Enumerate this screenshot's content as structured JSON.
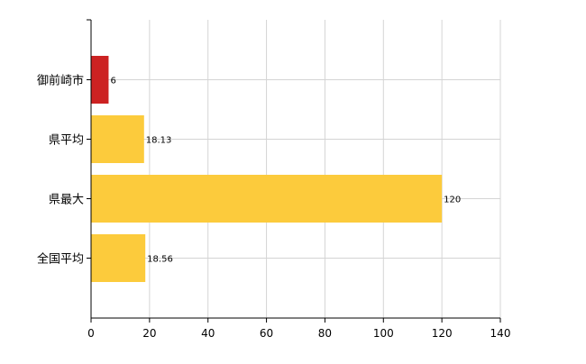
{
  "chart_data": {
    "type": "bar",
    "orientation": "horizontal",
    "categories": [
      "御前崎市",
      "県平均",
      "県最大",
      "全国平均"
    ],
    "values": [
      6,
      18.13,
      120,
      18.56
    ],
    "data_labels": [
      "6",
      "18.13",
      "120",
      "18.56"
    ],
    "bar_colors": [
      "#cc2222",
      "#fccb3c",
      "#fccb3c",
      "#fccb3c"
    ],
    "xlim": [
      0,
      140
    ],
    "x_ticks": [
      0,
      20,
      40,
      60,
      80,
      100,
      120,
      140
    ],
    "grid": true,
    "title": "",
    "xlabel": "",
    "ylabel": ""
  }
}
